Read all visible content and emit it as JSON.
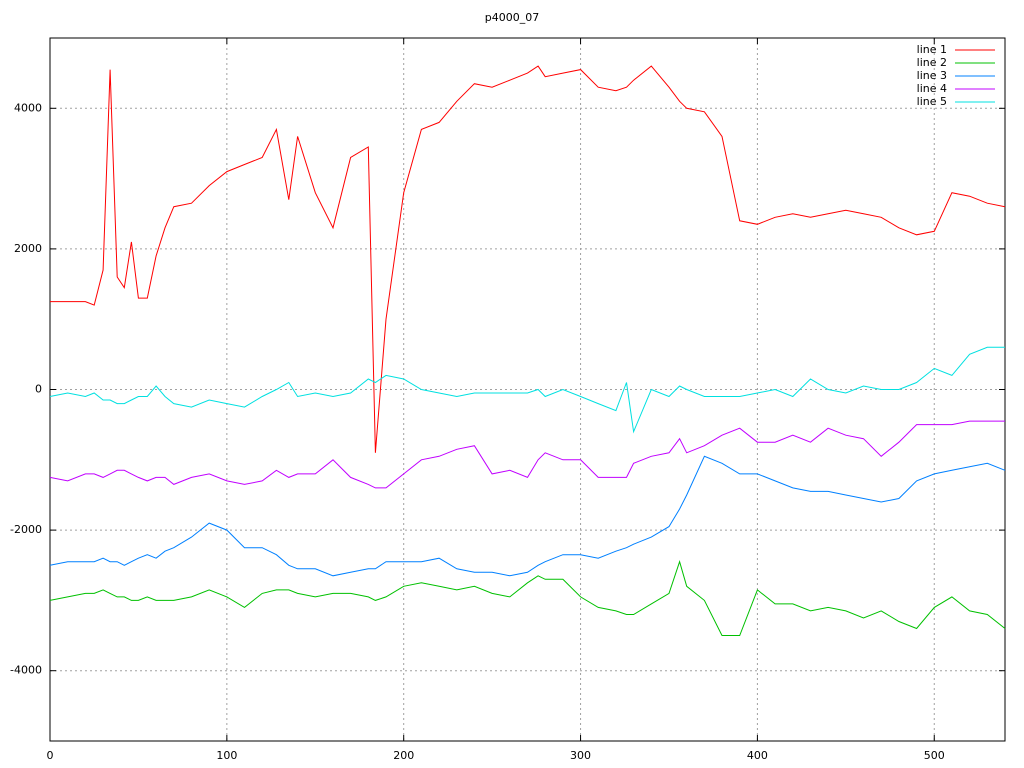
{
  "chart_data": {
    "type": "line",
    "title": "p4000_07",
    "x": [
      0,
      10,
      20,
      25,
      30,
      34,
      38,
      42,
      46,
      50,
      55,
      60,
      65,
      70,
      80,
      90,
      100,
      110,
      120,
      128,
      135,
      140,
      150,
      160,
      170,
      180,
      184,
      190,
      200,
      210,
      220,
      230,
      240,
      250,
      260,
      270,
      276,
      280,
      290,
      300,
      310,
      320,
      326,
      330,
      340,
      350,
      356,
      360,
      370,
      380,
      390,
      400,
      410,
      420,
      430,
      440,
      450,
      460,
      470,
      480,
      490,
      500,
      510,
      520,
      530,
      540
    ],
    "series": [
      {
        "name": "line 1",
        "color": "#ff0000",
        "values": [
          1250,
          1250,
          1250,
          1200,
          1700,
          4550,
          1600,
          1450,
          2100,
          1300,
          1300,
          1900,
          2300,
          2600,
          2650,
          2900,
          3100,
          3200,
          3300,
          3700,
          2700,
          3600,
          2800,
          2300,
          3300,
          3450,
          -900,
          1000,
          2800,
          3700,
          3800,
          4100,
          4350,
          4300,
          4400,
          4500,
          4600,
          4450,
          4500,
          4550,
          4300,
          4250,
          4300,
          4400,
          4600,
          4300,
          4100,
          4000,
          3950,
          3600,
          2400,
          2350,
          2450,
          2500,
          2450,
          2500,
          2550,
          2500,
          2450,
          2300,
          2200,
          2250,
          2800,
          2750,
          2650,
          2600
        ]
      },
      {
        "name": "line 2",
        "color": "#00c000",
        "values": [
          -3000,
          -2950,
          -2900,
          -2900,
          -2850,
          -2900,
          -2950,
          -2950,
          -3000,
          -3000,
          -2950,
          -3000,
          -3000,
          -3000,
          -2950,
          -2850,
          -2950,
          -3100,
          -2900,
          -2850,
          -2850,
          -2900,
          -2950,
          -2900,
          -2900,
          -2950,
          -3000,
          -2950,
          -2800,
          -2750,
          -2800,
          -2850,
          -2800,
          -2900,
          -2950,
          -2750,
          -2650,
          -2700,
          -2700,
          -2950,
          -3100,
          -3150,
          -3200,
          -3200,
          -3050,
          -2900,
          -2450,
          -2800,
          -3000,
          -3500,
          -3500,
          -2850,
          -3050,
          -3050,
          -3150,
          -3100,
          -3150,
          -3250,
          -3150,
          -3300,
          -3400,
          -3100,
          -2950,
          -3150,
          -3200,
          -3400
        ]
      },
      {
        "name": "line 3",
        "color": "#0080ff",
        "values": [
          -2500,
          -2450,
          -2450,
          -2450,
          -2400,
          -2450,
          -2450,
          -2500,
          -2450,
          -2400,
          -2350,
          -2400,
          -2300,
          -2250,
          -2100,
          -1900,
          -2000,
          -2250,
          -2250,
          -2350,
          -2500,
          -2550,
          -2550,
          -2650,
          -2600,
          -2550,
          -2550,
          -2450,
          -2450,
          -2450,
          -2400,
          -2550,
          -2600,
          -2600,
          -2650,
          -2600,
          -2500,
          -2450,
          -2350,
          -2350,
          -2400,
          -2300,
          -2250,
          -2200,
          -2100,
          -1950,
          -1700,
          -1500,
          -950,
          -1050,
          -1200,
          -1200,
          -1300,
          -1400,
          -1450,
          -1450,
          -1500,
          -1550,
          -1600,
          -1550,
          -1300,
          -1200,
          -1150,
          -1100,
          -1050,
          -1150
        ]
      },
      {
        "name": "line 4",
        "color": "#c000ff",
        "values": [
          -1250,
          -1300,
          -1200,
          -1200,
          -1250,
          -1200,
          -1150,
          -1150,
          -1200,
          -1250,
          -1300,
          -1250,
          -1250,
          -1350,
          -1250,
          -1200,
          -1300,
          -1350,
          -1300,
          -1150,
          -1250,
          -1200,
          -1200,
          -1000,
          -1250,
          -1350,
          -1400,
          -1400,
          -1200,
          -1000,
          -950,
          -850,
          -800,
          -1200,
          -1150,
          -1250,
          -1000,
          -900,
          -1000,
          -1000,
          -1250,
          -1250,
          -1250,
          -1050,
          -950,
          -900,
          -700,
          -900,
          -800,
          -650,
          -550,
          -750,
          -750,
          -650,
          -750,
          -550,
          -650,
          -700,
          -950,
          -750,
          -500,
          -500,
          -500,
          -450,
          -450,
          -450
        ]
      },
      {
        "name": "line 5",
        "color": "#00e0e0",
        "values": [
          -100,
          -50,
          -100,
          -50,
          -150,
          -150,
          -200,
          -200,
          -150,
          -100,
          -100,
          50,
          -100,
          -200,
          -250,
          -150,
          -200,
          -250,
          -100,
          0,
          100,
          -100,
          -50,
          -100,
          -50,
          150,
          100,
          200,
          150,
          0,
          -50,
          -100,
          -50,
          -50,
          -50,
          -50,
          0,
          -100,
          0,
          -100,
          -200,
          -300,
          100,
          -600,
          0,
          -100,
          50,
          0,
          -100,
          -100,
          -100,
          -50,
          0,
          -100,
          150,
          0,
          -50,
          50,
          0,
          0,
          100,
          300,
          200,
          500,
          600,
          600
        ]
      }
    ],
    "xlim": [
      0,
      540
    ],
    "ylim": [
      -5000,
      5000
    ],
    "xticks": [
      0,
      100,
      200,
      300,
      400,
      500
    ],
    "yticks": [
      -4000,
      -2000,
      0,
      2000,
      4000
    ],
    "grid": true,
    "legend": "top-right"
  }
}
